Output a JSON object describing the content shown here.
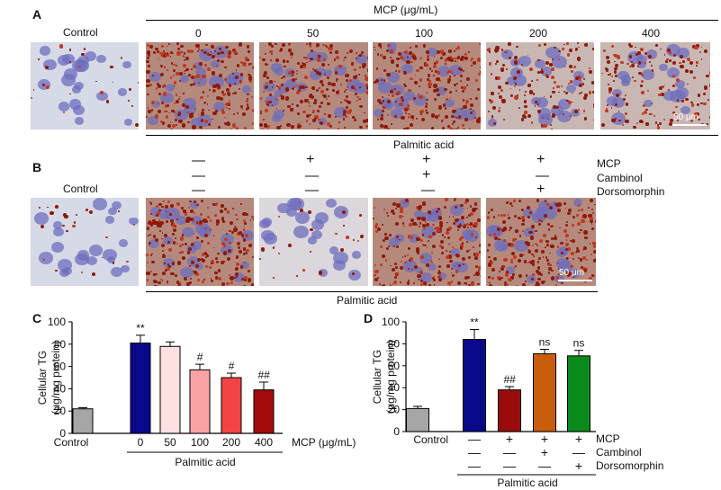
{
  "panels": {
    "a": "A",
    "b": "B",
    "c": "C",
    "d": "D"
  },
  "panel_a": {
    "control_label": "Control",
    "mcp_header": "MCP (μg/mL)",
    "doses": [
      "0",
      "50",
      "100",
      "200",
      "400"
    ],
    "scale_bar": "50 μm",
    "treatment_label": "Palmitic acid"
  },
  "panel_b": {
    "control_label": "Control",
    "row_labels": [
      "MCP",
      "Cambinol",
      "Dorsomorphin"
    ],
    "signs": [
      [
        "—",
        "—",
        "—"
      ],
      [
        "+",
        "—",
        "—"
      ],
      [
        "+",
        "+",
        "—"
      ],
      [
        "+",
        "—",
        "+"
      ]
    ],
    "scale_bar": "50 μm",
    "treatment_label": "Palmitic acid"
  },
  "chart_data": [
    {
      "type": "bar",
      "panel": "C",
      "ylabel": "Cellular TG (μg/mg protein)",
      "ylabel_line1": "Cellular TG",
      "ylabel_line2": "(μg/mg protein)",
      "ylim": [
        0,
        100
      ],
      "yticks": [
        "0",
        "20",
        "40",
        "60",
        "80",
        "100"
      ],
      "categories": [
        "Control",
        "0",
        "50",
        "100",
        "200",
        "400"
      ],
      "values": [
        22,
        81,
        78,
        57,
        50,
        39
      ],
      "errors": [
        1,
        7,
        4,
        5,
        4,
        7
      ],
      "colors": [
        "#a6a6a6",
        "#08088a",
        "#fde0e0",
        "#f7a3a3",
        "#f24444",
        "#a20b0b"
      ],
      "significance": [
        "",
        "**",
        "",
        "#",
        "#",
        "##"
      ],
      "xlabel": "MCP (μg/mL)",
      "group_label": "Palmitic acid"
    },
    {
      "type": "bar",
      "panel": "D",
      "ylabel": "Cellular TG (μg/mg protein)",
      "ylabel_line1": "Cellular TG",
      "ylabel_line2": "(μg/mg protein)",
      "ylim": [
        0,
        100
      ],
      "yticks": [
        "0",
        "20",
        "40",
        "60",
        "80",
        "100"
      ],
      "categories": [
        "Control",
        "MCP−",
        "MCP+",
        "MCP+ Cambinol+",
        "MCP+ Dorsomorphin+"
      ],
      "values": [
        21,
        84,
        38,
        71,
        69
      ],
      "errors": [
        2,
        9,
        3,
        4,
        5
      ],
      "colors": [
        "#a6a6a6",
        "#08088a",
        "#9a0c0c",
        "#c85e0c",
        "#0b8a1c"
      ],
      "significance": [
        "",
        "**",
        "##",
        "ns",
        "ns"
      ],
      "control_label": "Control",
      "row_labels": [
        "MCP",
        "Cambinol",
        "Dorsomorphin"
      ],
      "signs": [
        [
          "—",
          "—",
          "—"
        ],
        [
          "+",
          "—",
          "—"
        ],
        [
          "+",
          "+",
          "—"
        ],
        [
          "+",
          "—",
          "+"
        ]
      ],
      "group_label": "Palmitic acid"
    }
  ]
}
